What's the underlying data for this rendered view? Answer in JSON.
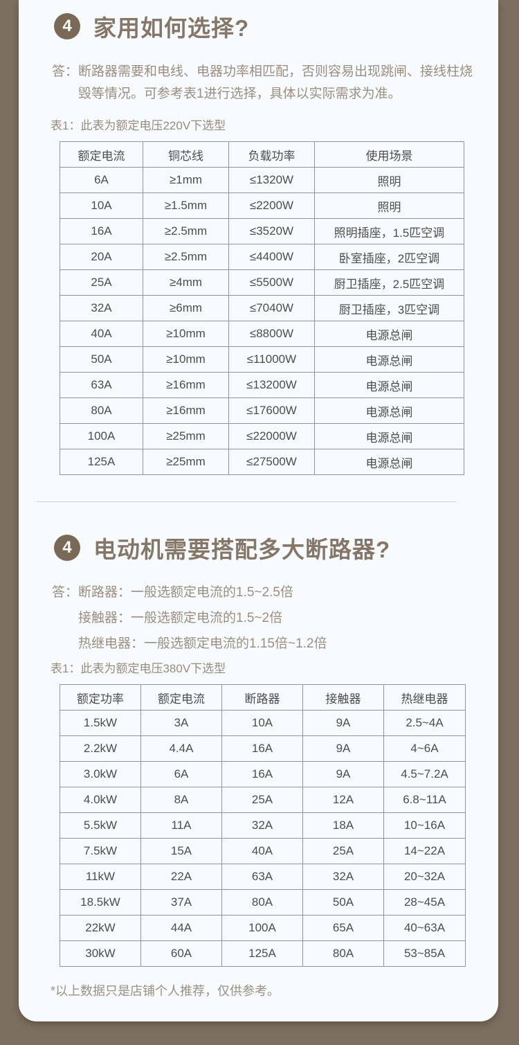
{
  "colors": {
    "background_brown": "#7d6f60",
    "card_background": "#f8fbfe",
    "badge_brown": "#7a6957",
    "title_text": "#857768",
    "body_text": "#9a8e80",
    "table_text": "#4c4c4c",
    "table_border": "#8f969c",
    "divider": "#cbd0d4"
  },
  "section1": {
    "number": "4",
    "title": "家用如何选择?",
    "answer_prefix": "答：",
    "answer": "断路器需要和电线、电器功率相匹配，否则容易出现跳闸、接线柱烧毁等情况。可参考表1进行选择，具体以实际需求为准。",
    "table_caption": "表1：此表为额定电压220V下选型",
    "table": {
      "headers": [
        "额定电流",
        "铜芯线",
        "负载功率",
        "使用场景"
      ],
      "rows": [
        [
          "6A",
          "≥1mm",
          "≤1320W",
          "照明"
        ],
        [
          "10A",
          "≥1.5mm",
          "≤2200W",
          "照明"
        ],
        [
          "16A",
          "≥2.5mm",
          "≤3520W",
          "照明插座，1.5匹空调"
        ],
        [
          "20A",
          "≥2.5mm",
          "≤4400W",
          "卧室插座，2匹空调"
        ],
        [
          "25A",
          "≥4mm",
          "≤5500W",
          "厨卫插座，2.5匹空调"
        ],
        [
          "32A",
          "≥6mm",
          "≤7040W",
          "厨卫插座，3匹空调"
        ],
        [
          "40A",
          "≥10mm",
          "≤8800W",
          "电源总闸"
        ],
        [
          "50A",
          "≥10mm",
          "≤11000W",
          "电源总闸"
        ],
        [
          "63A",
          "≥16mm",
          "≤13200W",
          "电源总闸"
        ],
        [
          "80A",
          "≥16mm",
          "≤17600W",
          "电源总闸"
        ],
        [
          "100A",
          "≥25mm",
          "≤22000W",
          "电源总闸"
        ],
        [
          "125A",
          "≥25mm",
          "≤27500W",
          "电源总闸"
        ]
      ]
    }
  },
  "section2": {
    "number": "4",
    "title": "电动机需要搭配多大断路器?",
    "answer_prefix": "答：",
    "answer_lines": [
      "断路器：一般选额定电流的1.5~2.5倍",
      "接触器：一般选额定电流的1.5~2倍",
      "热继电器：一般选额定电流的1.15倍~1.2倍"
    ],
    "table_caption": "表1：此表为额定电压380V下选型",
    "table": {
      "headers": [
        "额定功率",
        "额定电流",
        "断路器",
        "接触器",
        "热继电器"
      ],
      "rows": [
        [
          "1.5kW",
          "3A",
          "10A",
          "9A",
          "2.5~4A"
        ],
        [
          "2.2kW",
          "4.4A",
          "16A",
          "9A",
          "4~6A"
        ],
        [
          "3.0kW",
          "6A",
          "16A",
          "9A",
          "4.5~7.2A"
        ],
        [
          "4.0kW",
          "8A",
          "25A",
          "12A",
          "6.8~11A"
        ],
        [
          "5.5kW",
          "11A",
          "32A",
          "18A",
          "10~16A"
        ],
        [
          "7.5kW",
          "15A",
          "40A",
          "25A",
          "14~22A"
        ],
        [
          "11kW",
          "22A",
          "63A",
          "32A",
          "20~32A"
        ],
        [
          "18.5kW",
          "37A",
          "80A",
          "50A",
          "28~45A"
        ],
        [
          "22kW",
          "44A",
          "100A",
          "65A",
          "40~63A"
        ],
        [
          "30kW",
          "60A",
          "125A",
          "80A",
          "53~85A"
        ]
      ]
    },
    "footnote": "*以上数据只是店铺个人推荐，仅供参考。"
  }
}
